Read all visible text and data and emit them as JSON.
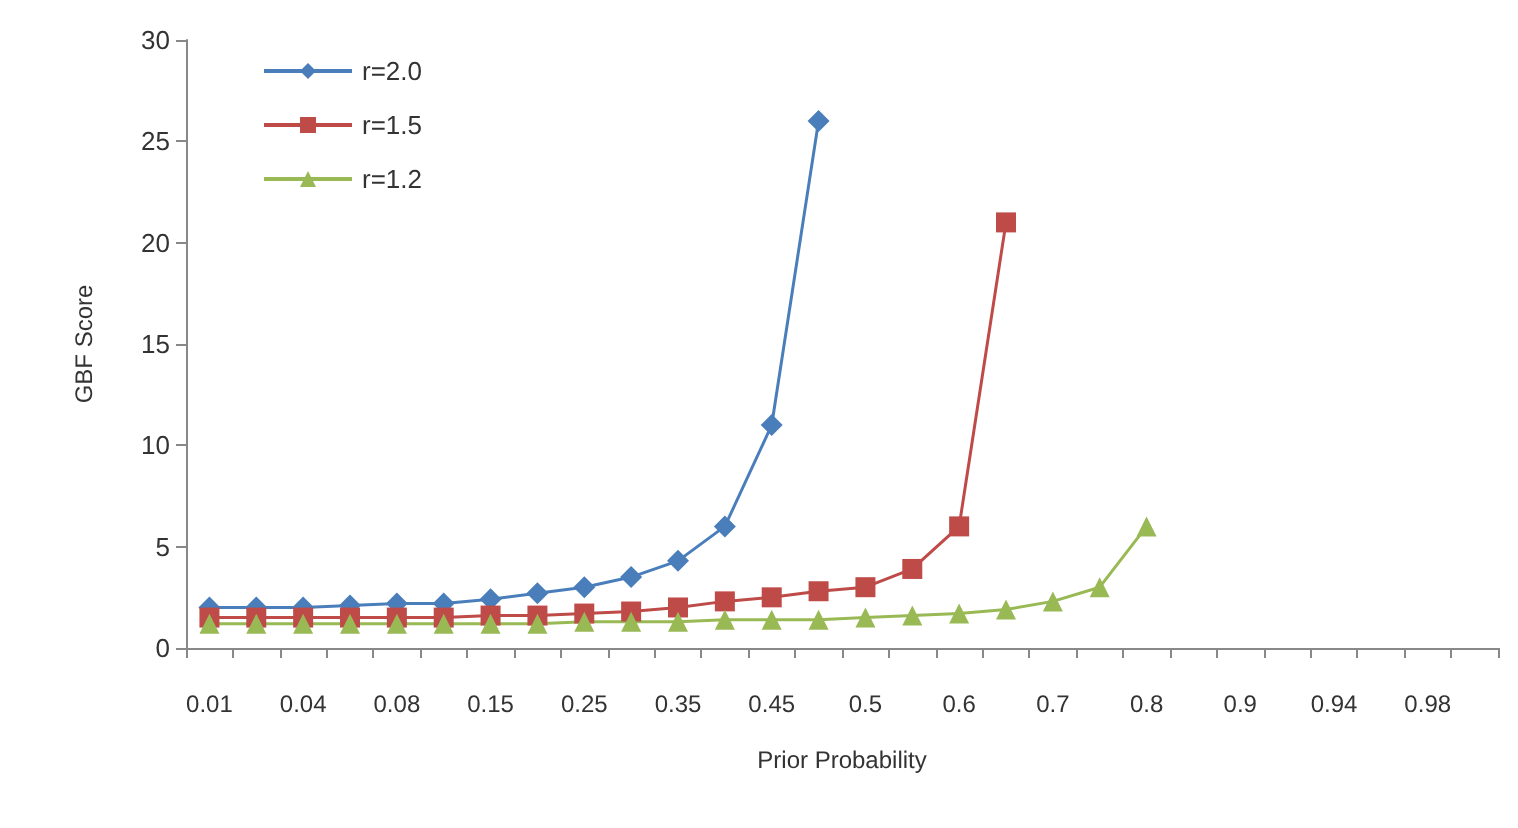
{
  "chart_data": {
    "type": "line",
    "xlabel": "Prior Probability",
    "ylabel": "GBF Score",
    "categories": [
      "0.01",
      null,
      "0.04",
      null,
      "0.08",
      null,
      "0.15",
      null,
      "0.25",
      null,
      "0.35",
      null,
      "0.45",
      null,
      "0.5",
      null,
      "0.6",
      null,
      "0.7",
      null,
      "0.8",
      null,
      "0.9",
      null,
      "0.94",
      null,
      "0.98",
      null
    ],
    "series": [
      {
        "name": "r=2.0",
        "color": "#4a7ebb",
        "marker": "diamond",
        "values": [
          2.0,
          2.0,
          2.0,
          2.1,
          2.2,
          2.2,
          2.4,
          2.7,
          3.0,
          3.5,
          4.3,
          6.0,
          11,
          26,
          null,
          null,
          null,
          null,
          null,
          null,
          null,
          null,
          null,
          null,
          null,
          null,
          null,
          null
        ]
      },
      {
        "name": "r=1.5",
        "color": "#be4b48",
        "marker": "square",
        "values": [
          1.5,
          1.5,
          1.5,
          1.5,
          1.5,
          1.5,
          1.6,
          1.6,
          1.7,
          1.8,
          2.0,
          2.3,
          2.5,
          2.8,
          3.0,
          3.9,
          6.0,
          21,
          null,
          null,
          null,
          null,
          null,
          null,
          null,
          null,
          null,
          null
        ]
      },
      {
        "name": "r=1.2",
        "color": "#98b954",
        "marker": "triangle",
        "values": [
          1.2,
          1.2,
          1.2,
          1.2,
          1.2,
          1.2,
          1.2,
          1.2,
          1.3,
          1.3,
          1.3,
          1.4,
          1.4,
          1.4,
          1.5,
          1.6,
          1.7,
          1.9,
          2.3,
          3.0,
          6.0,
          null,
          null,
          null,
          null,
          null,
          null,
          null
        ]
      }
    ],
    "ylim": [
      0,
      30
    ],
    "yticks": [
      0,
      5,
      10,
      15,
      20,
      25,
      30
    ],
    "grid": false,
    "legend": "top left"
  }
}
